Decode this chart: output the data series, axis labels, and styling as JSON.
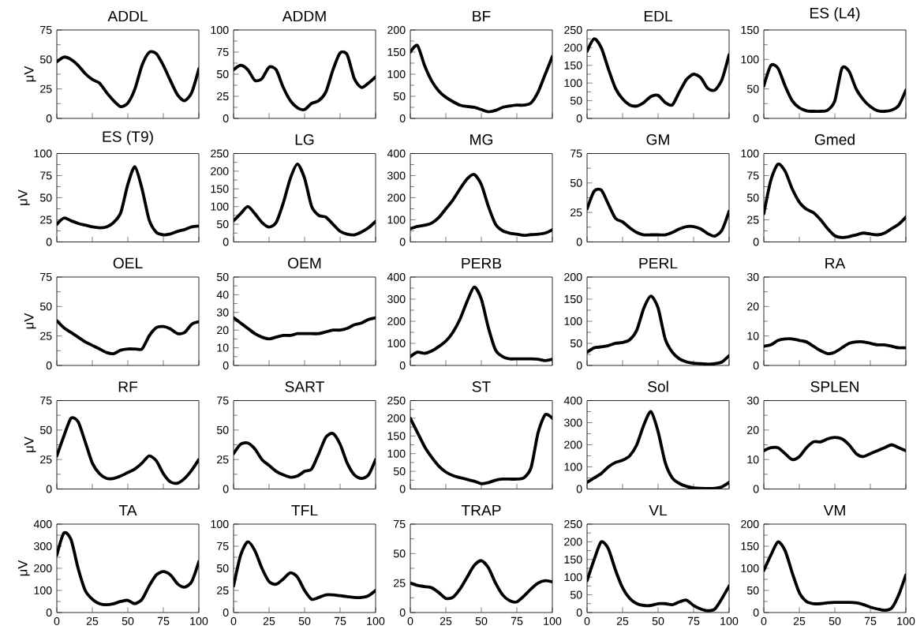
{
  "chart_data": [
    {
      "type": "line",
      "title": "ADDL",
      "ylabel": "μV",
      "x": [
        0,
        5,
        10,
        15,
        20,
        25,
        30,
        35,
        40,
        45,
        50,
        55,
        60,
        65,
        70,
        75,
        80,
        85,
        90,
        95,
        100
      ],
      "values": [
        48,
        52,
        50,
        45,
        38,
        33,
        30,
        22,
        15,
        10,
        13,
        25,
        45,
        56,
        55,
        45,
        32,
        20,
        15,
        22,
        42
      ],
      "color": "#000000",
      "xlim": [
        0,
        100
      ],
      "xticks": [
        0,
        25,
        50,
        75,
        100
      ],
      "ylim": [
        0,
        75
      ],
      "yticks": [
        0,
        25,
        50,
        75
      ],
      "tick_labels": "y"
    },
    {
      "type": "line",
      "title": "ADDM",
      "x": [
        0,
        5,
        10,
        15,
        20,
        25,
        30,
        35,
        40,
        45,
        50,
        55,
        60,
        65,
        70,
        75,
        80,
        85,
        90,
        95,
        100
      ],
      "values": [
        55,
        60,
        55,
        43,
        45,
        58,
        55,
        35,
        20,
        12,
        10,
        17,
        20,
        30,
        55,
        74,
        72,
        45,
        35,
        40,
        47
      ],
      "color": "#000000",
      "xlim": [
        0,
        100
      ],
      "xticks": [
        0,
        25,
        50,
        75,
        100
      ],
      "ylim": [
        0,
        100
      ],
      "yticks": [
        0,
        25,
        50,
        75,
        100
      ],
      "tick_labels": "y"
    },
    {
      "type": "line",
      "title": "BF",
      "x": [
        0,
        5,
        10,
        15,
        20,
        25,
        30,
        35,
        40,
        45,
        50,
        55,
        60,
        65,
        70,
        75,
        80,
        85,
        90,
        95,
        100
      ],
      "values": [
        150,
        165,
        120,
        85,
        62,
        48,
        38,
        30,
        27,
        25,
        20,
        15,
        18,
        25,
        28,
        30,
        30,
        35,
        60,
        100,
        140
      ],
      "color": "#000000",
      "xlim": [
        0,
        100
      ],
      "xticks": [
        0,
        25,
        50,
        75,
        100
      ],
      "ylim": [
        0,
        200
      ],
      "yticks": [
        0,
        50,
        100,
        150,
        200
      ],
      "tick_labels": "y"
    },
    {
      "type": "line",
      "title": "EDL",
      "x": [
        0,
        5,
        10,
        15,
        20,
        25,
        30,
        35,
        40,
        45,
        50,
        55,
        60,
        65,
        70,
        75,
        80,
        85,
        90,
        95,
        100
      ],
      "values": [
        190,
        225,
        200,
        140,
        85,
        55,
        38,
        35,
        45,
        62,
        65,
        45,
        38,
        75,
        110,
        125,
        115,
        85,
        80,
        110,
        180
      ],
      "color": "#000000",
      "xlim": [
        0,
        100
      ],
      "xticks": [
        0,
        25,
        50,
        75,
        100
      ],
      "ylim": [
        0,
        250
      ],
      "yticks": [
        0,
        50,
        100,
        150,
        200,
        250
      ],
      "tick_labels": "y"
    },
    {
      "type": "line",
      "title": "ES (L4)",
      "x": [
        0,
        5,
        10,
        15,
        20,
        25,
        30,
        35,
        40,
        45,
        50,
        55,
        60,
        65,
        70,
        75,
        80,
        85,
        90,
        95,
        100
      ],
      "values": [
        55,
        90,
        85,
        55,
        30,
        18,
        13,
        12,
        12,
        14,
        30,
        85,
        80,
        50,
        32,
        20,
        13,
        12,
        14,
        22,
        48
      ],
      "color": "#000000",
      "xlim": [
        0,
        100
      ],
      "xticks": [
        0,
        25,
        50,
        75,
        100
      ],
      "ylim": [
        0,
        150
      ],
      "yticks": [
        0,
        50,
        100,
        150
      ],
      "tick_labels": "y"
    },
    {
      "type": "line",
      "title": "ES (T9)",
      "ylabel": "μV",
      "x": [
        0,
        5,
        10,
        15,
        20,
        25,
        30,
        35,
        40,
        45,
        50,
        55,
        60,
        65,
        70,
        75,
        80,
        85,
        90,
        95,
        100
      ],
      "values": [
        20,
        27,
        24,
        21,
        19,
        17,
        16,
        17,
        22,
        33,
        65,
        85,
        60,
        25,
        11,
        8,
        9,
        12,
        14,
        17,
        18
      ],
      "color": "#000000",
      "xlim": [
        0,
        100
      ],
      "xticks": [
        0,
        25,
        50,
        75,
        100
      ],
      "ylim": [
        0,
        100
      ],
      "yticks": [
        0,
        25,
        50,
        75,
        100
      ],
      "tick_labels": "y"
    },
    {
      "type": "line",
      "title": "LG",
      "x": [
        0,
        5,
        10,
        15,
        20,
        25,
        30,
        35,
        40,
        45,
        50,
        55,
        60,
        65,
        70,
        75,
        80,
        85,
        90,
        95,
        100
      ],
      "values": [
        60,
        80,
        100,
        80,
        55,
        42,
        55,
        110,
        180,
        220,
        180,
        100,
        75,
        70,
        50,
        30,
        22,
        20,
        28,
        40,
        58
      ],
      "color": "#000000",
      "xlim": [
        0,
        100
      ],
      "xticks": [
        0,
        25,
        50,
        75,
        100
      ],
      "ylim": [
        0,
        250
      ],
      "yticks": [
        0,
        50,
        100,
        150,
        200,
        250
      ],
      "tick_labels": "y"
    },
    {
      "type": "line",
      "title": "MG",
      "x": [
        0,
        5,
        10,
        15,
        20,
        25,
        30,
        35,
        40,
        45,
        50,
        55,
        60,
        65,
        70,
        75,
        80,
        85,
        90,
        95,
        100
      ],
      "values": [
        60,
        70,
        75,
        85,
        110,
        150,
        190,
        240,
        285,
        305,
        260,
        160,
        80,
        50,
        40,
        35,
        30,
        33,
        35,
        40,
        55
      ],
      "color": "#000000",
      "xlim": [
        0,
        100
      ],
      "xticks": [
        0,
        25,
        50,
        75,
        100
      ],
      "ylim": [
        0,
        400
      ],
      "yticks": [
        0,
        100,
        200,
        300,
        400
      ],
      "tick_labels": "y"
    },
    {
      "type": "line",
      "title": "GM",
      "x": [
        0,
        5,
        10,
        15,
        20,
        25,
        30,
        35,
        40,
        45,
        50,
        55,
        60,
        65,
        70,
        75,
        80,
        85,
        90,
        95,
        100
      ],
      "values": [
        28,
        43,
        44,
        32,
        20,
        17,
        12,
        8,
        6,
        6,
        6,
        6,
        8,
        11,
        13,
        13,
        11,
        7,
        5,
        10,
        26
      ],
      "color": "#000000",
      "xlim": [
        0,
        100
      ],
      "xticks": [
        0,
        25,
        50,
        75,
        100
      ],
      "ylim": [
        0,
        75
      ],
      "yticks": [
        0,
        25,
        50,
        75
      ],
      "tick_labels": "y"
    },
    {
      "type": "line",
      "title": "Gmed",
      "x": [
        0,
        5,
        10,
        15,
        20,
        25,
        30,
        35,
        40,
        45,
        50,
        55,
        60,
        65,
        70,
        75,
        80,
        85,
        90,
        95,
        100
      ],
      "values": [
        32,
        70,
        88,
        80,
        60,
        45,
        37,
        33,
        25,
        15,
        7,
        5,
        6,
        8,
        10,
        9,
        8,
        10,
        15,
        20,
        28
      ],
      "color": "#000000",
      "xlim": [
        0,
        100
      ],
      "xticks": [
        0,
        25,
        50,
        75,
        100
      ],
      "ylim": [
        0,
        100
      ],
      "yticks": [
        0,
        25,
        50,
        75,
        100
      ],
      "tick_labels": "y"
    },
    {
      "type": "line",
      "title": "OEL",
      "ylabel": "μV",
      "x": [
        0,
        5,
        10,
        15,
        20,
        25,
        30,
        35,
        40,
        45,
        50,
        55,
        60,
        65,
        70,
        75,
        80,
        85,
        90,
        95,
        100
      ],
      "values": [
        38,
        32,
        28,
        24,
        20,
        17,
        14,
        11,
        10,
        13,
        14,
        14,
        14,
        25,
        32,
        33,
        31,
        27,
        28,
        35,
        37
      ],
      "color": "#000000",
      "xlim": [
        0,
        100
      ],
      "xticks": [
        0,
        25,
        50,
        75,
        100
      ],
      "ylim": [
        0,
        75
      ],
      "yticks": [
        0,
        25,
        50,
        75
      ],
      "tick_labels": "y"
    },
    {
      "type": "line",
      "title": "OEM",
      "x": [
        0,
        5,
        10,
        15,
        20,
        25,
        30,
        35,
        40,
        45,
        50,
        55,
        60,
        65,
        70,
        75,
        80,
        85,
        90,
        95,
        100
      ],
      "values": [
        27,
        24,
        21,
        18,
        16,
        15,
        16,
        17,
        17,
        18,
        18,
        18,
        18,
        19,
        20,
        20,
        21,
        23,
        24,
        26,
        27
      ],
      "color": "#000000",
      "xlim": [
        0,
        100
      ],
      "xticks": [
        0,
        25,
        50,
        75,
        100
      ],
      "ylim": [
        0,
        50
      ],
      "yticks": [
        0,
        10,
        20,
        30,
        40,
        50
      ],
      "tick_labels": "y"
    },
    {
      "type": "line",
      "title": "PERB",
      "x": [
        0,
        5,
        10,
        15,
        20,
        25,
        30,
        35,
        40,
        45,
        50,
        55,
        60,
        65,
        70,
        75,
        80,
        85,
        90,
        95,
        100
      ],
      "values": [
        40,
        60,
        55,
        65,
        85,
        110,
        150,
        210,
        290,
        355,
        300,
        170,
        70,
        40,
        30,
        30,
        30,
        30,
        28,
        22,
        28
      ],
      "color": "#000000",
      "xlim": [
        0,
        100
      ],
      "xticks": [
        0,
        25,
        50,
        75,
        100
      ],
      "ylim": [
        0,
        400
      ],
      "yticks": [
        0,
        100,
        200,
        300,
        400
      ],
      "tick_labels": "y"
    },
    {
      "type": "line",
      "title": "PERL",
      "x": [
        0,
        5,
        10,
        15,
        20,
        25,
        30,
        35,
        40,
        45,
        50,
        55,
        60,
        65,
        70,
        75,
        80,
        85,
        90,
        95,
        100
      ],
      "values": [
        30,
        40,
        42,
        45,
        50,
        52,
        58,
        80,
        130,
        157,
        130,
        60,
        30,
        15,
        8,
        5,
        4,
        3,
        4,
        8,
        22
      ],
      "color": "#000000",
      "xlim": [
        0,
        100
      ],
      "xticks": [
        0,
        25,
        50,
        75,
        100
      ],
      "ylim": [
        0,
        200
      ],
      "yticks": [
        0,
        50,
        100,
        150,
        200
      ],
      "tick_labels": "y"
    },
    {
      "type": "line",
      "title": "RA",
      "x": [
        0,
        5,
        10,
        15,
        20,
        25,
        30,
        35,
        40,
        45,
        50,
        55,
        60,
        65,
        70,
        75,
        80,
        85,
        90,
        95,
        100
      ],
      "values": [
        6.5,
        7,
        8.5,
        9,
        9,
        8.5,
        8,
        6.5,
        5,
        4,
        4.5,
        6,
        7.5,
        8,
        8,
        7.5,
        7,
        7,
        6.5,
        6,
        6
      ],
      "color": "#000000",
      "xlim": [
        0,
        100
      ],
      "xticks": [
        0,
        25,
        50,
        75,
        100
      ],
      "ylim": [
        0,
        30
      ],
      "yticks": [
        0,
        10,
        20,
        30
      ],
      "tick_labels": "y"
    },
    {
      "type": "line",
      "title": "RF",
      "ylabel": "μV",
      "x": [
        0,
        5,
        10,
        15,
        20,
        25,
        30,
        35,
        40,
        45,
        50,
        55,
        60,
        65,
        70,
        75,
        80,
        85,
        90,
        95,
        100
      ],
      "values": [
        28,
        45,
        60,
        57,
        40,
        22,
        13,
        9,
        9,
        11,
        14,
        17,
        22,
        28,
        24,
        13,
        6,
        5,
        9,
        16,
        25
      ],
      "color": "#000000",
      "xlim": [
        0,
        100
      ],
      "xticks": [
        0,
        25,
        50,
        75,
        100
      ],
      "ylim": [
        0,
        75
      ],
      "yticks": [
        0,
        25,
        50,
        75
      ],
      "tick_labels": "y"
    },
    {
      "type": "line",
      "title": "SART",
      "x": [
        0,
        5,
        10,
        15,
        20,
        25,
        30,
        35,
        40,
        45,
        50,
        55,
        60,
        65,
        70,
        75,
        80,
        85,
        90,
        95,
        100
      ],
      "values": [
        30,
        38,
        39,
        34,
        25,
        20,
        15,
        12,
        10,
        11,
        15,
        17,
        30,
        44,
        47,
        38,
        22,
        12,
        9,
        12,
        25
      ],
      "color": "#000000",
      "xlim": [
        0,
        100
      ],
      "xticks": [
        0,
        25,
        50,
        75,
        100
      ],
      "ylim": [
        0,
        75
      ],
      "yticks": [
        0,
        25,
        50,
        75
      ],
      "tick_labels": "y"
    },
    {
      "type": "line",
      "title": "ST",
      "x": [
        0,
        5,
        10,
        15,
        20,
        25,
        30,
        35,
        40,
        45,
        50,
        55,
        60,
        65,
        70,
        75,
        80,
        85,
        90,
        95,
        100
      ],
      "values": [
        200,
        160,
        120,
        90,
        65,
        48,
        38,
        32,
        27,
        22,
        15,
        18,
        25,
        28,
        28,
        28,
        32,
        60,
        160,
        210,
        200
      ],
      "color": "#000000",
      "xlim": [
        0,
        100
      ],
      "xticks": [
        0,
        25,
        50,
        75,
        100
      ],
      "ylim": [
        0,
        250
      ],
      "yticks": [
        0,
        50,
        100,
        150,
        200,
        250
      ],
      "tick_labels": "y"
    },
    {
      "type": "line",
      "title": "Sol",
      "x": [
        0,
        5,
        10,
        15,
        20,
        25,
        30,
        35,
        40,
        45,
        50,
        55,
        60,
        65,
        70,
        75,
        80,
        85,
        90,
        95,
        100
      ],
      "values": [
        30,
        50,
        70,
        100,
        120,
        130,
        150,
        200,
        290,
        350,
        260,
        120,
        50,
        25,
        12,
        5,
        3,
        2,
        3,
        10,
        30
      ],
      "color": "#000000",
      "xlim": [
        0,
        100
      ],
      "xticks": [
        0,
        25,
        50,
        75,
        100
      ],
      "ylim": [
        0,
        400
      ],
      "yticks": [
        0,
        100,
        200,
        300,
        400
      ],
      "tick_labels": "y"
    },
    {
      "type": "line",
      "title": "SPLEN",
      "x": [
        0,
        5,
        10,
        15,
        20,
        25,
        30,
        35,
        40,
        45,
        50,
        55,
        60,
        65,
        70,
        75,
        80,
        85,
        90,
        95,
        100
      ],
      "values": [
        13,
        14,
        14,
        12,
        10,
        11,
        14,
        16,
        16,
        17,
        17.5,
        17,
        15,
        12,
        11,
        12,
        13,
        14,
        15,
        14,
        13
      ],
      "color": "#000000",
      "xlim": [
        0,
        100
      ],
      "xticks": [
        0,
        25,
        50,
        75,
        100
      ],
      "ylim": [
        0,
        30
      ],
      "yticks": [
        0,
        10,
        20,
        30
      ],
      "tick_labels": "y"
    },
    {
      "type": "line",
      "title": "TA",
      "ylabel": "μV",
      "x": [
        0,
        5,
        10,
        15,
        20,
        25,
        30,
        35,
        40,
        45,
        50,
        55,
        60,
        65,
        70,
        75,
        80,
        85,
        90,
        95,
        100
      ],
      "values": [
        260,
        360,
        330,
        200,
        100,
        60,
        40,
        35,
        40,
        50,
        55,
        40,
        60,
        120,
        170,
        185,
        170,
        130,
        115,
        140,
        230
      ],
      "color": "#000000",
      "xlim": [
        0,
        100
      ],
      "xticks": [
        0,
        25,
        50,
        75,
        100
      ],
      "ylim": [
        0,
        400
      ],
      "yticks": [
        0,
        100,
        200,
        300,
        400
      ]
    },
    {
      "type": "line",
      "title": "TFL",
      "x": [
        0,
        5,
        10,
        15,
        20,
        25,
        30,
        35,
        40,
        45,
        50,
        55,
        60,
        65,
        70,
        75,
        80,
        85,
        90,
        95,
        100
      ],
      "values": [
        30,
        65,
        80,
        70,
        50,
        35,
        32,
        38,
        45,
        40,
        25,
        15,
        17,
        20,
        20,
        19,
        18,
        17,
        17,
        19,
        25
      ],
      "color": "#000000",
      "xlim": [
        0,
        100
      ],
      "xticks": [
        0,
        25,
        50,
        75,
        100
      ],
      "ylim": [
        0,
        100
      ],
      "yticks": [
        0,
        25,
        50,
        75,
        100
      ]
    },
    {
      "type": "line",
      "title": "TRAP",
      "x": [
        0,
        5,
        10,
        15,
        20,
        25,
        30,
        35,
        40,
        45,
        50,
        55,
        60,
        65,
        70,
        75,
        80,
        85,
        90,
        95,
        100
      ],
      "values": [
        25,
        23,
        22,
        21,
        17,
        12,
        13,
        20,
        30,
        40,
        44,
        38,
        25,
        15,
        10,
        9,
        14,
        20,
        25,
        27,
        26
      ],
      "color": "#000000",
      "xlim": [
        0,
        100
      ],
      "xticks": [
        0,
        25,
        50,
        75,
        100
      ],
      "ylim": [
        0,
        75
      ],
      "yticks": [
        0,
        25,
        50,
        75
      ]
    },
    {
      "type": "line",
      "title": "VL",
      "x": [
        0,
        5,
        10,
        15,
        20,
        25,
        30,
        35,
        40,
        45,
        50,
        55,
        60,
        65,
        70,
        75,
        80,
        85,
        90,
        95,
        100
      ],
      "values": [
        90,
        150,
        200,
        180,
        120,
        70,
        40,
        25,
        20,
        20,
        25,
        25,
        22,
        30,
        35,
        20,
        10,
        5,
        10,
        40,
        75
      ],
      "color": "#000000",
      "xlim": [
        0,
        100
      ],
      "xticks": [
        0,
        25,
        50,
        75,
        100
      ],
      "ylim": [
        0,
        250
      ],
      "yticks": [
        0,
        50,
        100,
        150,
        200,
        250
      ]
    },
    {
      "type": "line",
      "title": "VM",
      "x": [
        0,
        5,
        10,
        15,
        20,
        25,
        30,
        35,
        40,
        45,
        50,
        55,
        60,
        65,
        70,
        75,
        80,
        85,
        90,
        95,
        100
      ],
      "values": [
        95,
        130,
        160,
        140,
        90,
        45,
        25,
        20,
        20,
        22,
        23,
        23,
        23,
        22,
        18,
        12,
        8,
        5,
        10,
        40,
        85
      ],
      "color": "#000000",
      "xlim": [
        0,
        100
      ],
      "xticks": [
        0,
        25,
        50,
        75,
        100
      ],
      "ylim": [
        0,
        200
      ],
      "yticks": [
        0,
        50,
        100,
        150,
        200
      ]
    }
  ]
}
